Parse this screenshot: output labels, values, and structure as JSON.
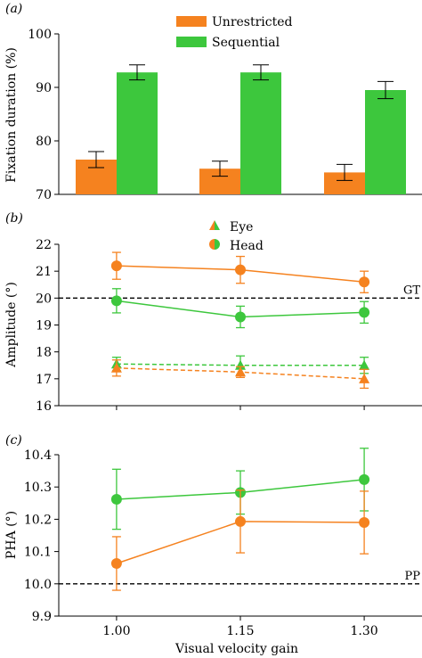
{
  "colors": {
    "orange": "#f5821f",
    "green": "#3dc73d",
    "axis": "#000000"
  },
  "chart_data": [
    {
      "panel_label": "(a)",
      "type": "bar",
      "ylabel": "Fixation duration (%)",
      "ylim": [
        70,
        100
      ],
      "yticks": [
        70,
        80,
        90,
        100
      ],
      "categories": [
        "1.00",
        "1.15",
        "1.30"
      ],
      "legend_placement": "top-center",
      "series": [
        {
          "name": "Unrestricted",
          "color": "#f5821f",
          "values": [
            76.5,
            74.8,
            74.1
          ],
          "errors": [
            1.5,
            1.4,
            1.5
          ]
        },
        {
          "name": "Sequential",
          "color": "#3dc73d",
          "values": [
            92.8,
            92.8,
            89.5
          ],
          "errors": [
            1.4,
            1.4,
            1.6
          ]
        }
      ]
    },
    {
      "panel_label": "(b)",
      "type": "line",
      "ylabel": "Amplitude (°)",
      "ylim": [
        16,
        22
      ],
      "yticks": [
        16,
        17,
        18,
        19,
        20,
        21,
        22
      ],
      "x": [
        1.0,
        1.15,
        1.3
      ],
      "xlim": [
        0.93,
        1.37
      ],
      "legend_placement": "top-center",
      "legend": [
        {
          "name": "Eye",
          "marker": "triangle"
        },
        {
          "name": "Head",
          "marker": "circle"
        }
      ],
      "reference_line": {
        "value": 20,
        "label": "GT"
      },
      "series": [
        {
          "name": "Head (Unrestricted)",
          "marker": "circle",
          "color": "#f5821f",
          "dashed": false,
          "values": [
            21.2,
            21.05,
            20.6
          ],
          "errors": [
            0.5,
            0.5,
            0.4
          ]
        },
        {
          "name": "Head (Sequential)",
          "marker": "circle",
          "color": "#3dc73d",
          "dashed": false,
          "values": [
            19.9,
            19.3,
            19.47
          ],
          "errors": [
            0.45,
            0.4,
            0.4
          ]
        },
        {
          "name": "Eye (Sequential)",
          "marker": "triangle",
          "color": "#3dc73d",
          "dashed": true,
          "values": [
            17.55,
            17.5,
            17.5
          ],
          "errors": [
            0.25,
            0.35,
            0.3
          ]
        },
        {
          "name": "Eye (Unrestricted)",
          "marker": "triangle",
          "color": "#f5821f",
          "dashed": true,
          "values": [
            17.4,
            17.25,
            17.0
          ],
          "errors": [
            0.3,
            0.2,
            0.35
          ]
        }
      ]
    },
    {
      "panel_label": "(c)",
      "type": "line",
      "ylabel": "PHA (°)",
      "xlabel": "Visual velocity gain",
      "ylim": [
        9.9,
        10.4
      ],
      "yticks": [
        "9.9",
        "10.0",
        "10.1",
        "10.2",
        "10.3",
        "10.4"
      ],
      "x": [
        1.0,
        1.15,
        1.3
      ],
      "xlim": [
        0.93,
        1.37
      ],
      "xticks": [
        "1.00",
        "1.15",
        "1.30"
      ],
      "reference_line": {
        "value": 10.0,
        "label": "PP"
      },
      "series": [
        {
          "name": "Sequential",
          "marker": "circle",
          "color": "#3dc73d",
          "dashed": false,
          "values": [
            10.262,
            10.283,
            10.323
          ],
          "errors": [
            0.093,
            0.067,
            0.097
          ]
        },
        {
          "name": "Unrestricted",
          "marker": "circle",
          "color": "#f5821f",
          "dashed": false,
          "values": [
            10.063,
            10.193,
            10.19
          ],
          "errors": [
            0.083,
            0.097,
            0.097
          ]
        }
      ]
    }
  ]
}
